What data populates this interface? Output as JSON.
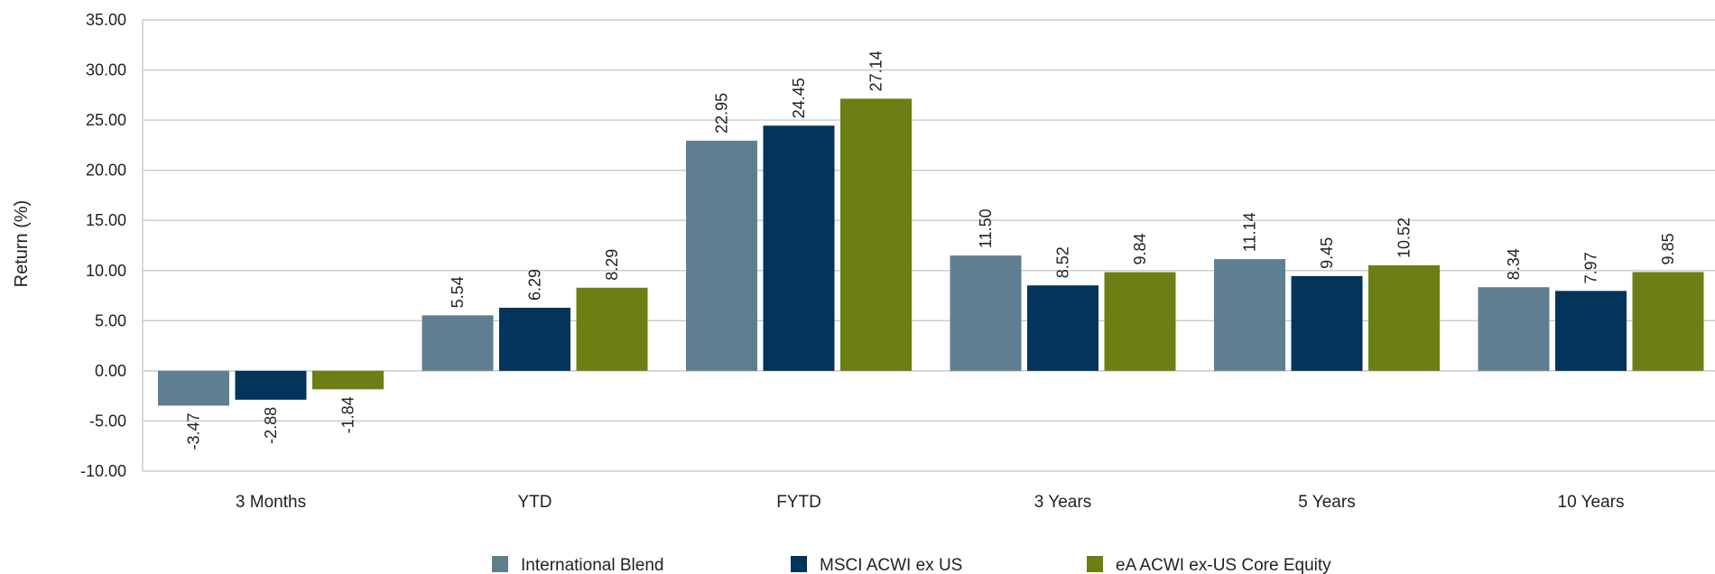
{
  "chart_data": {
    "type": "bar",
    "ylabel": "Return (%)",
    "ylim": [
      -10,
      35
    ],
    "ytick_step": 5,
    "yticks": [
      "-10.00",
      "-5.00",
      "0.00",
      "5.00",
      "10.00",
      "15.00",
      "20.00",
      "25.00",
      "30.00",
      "35.00"
    ],
    "grid": true,
    "legend_position": "bottom-center",
    "categories": [
      "3 Months",
      "YTD",
      "FYTD",
      "3 Years",
      "5 Years",
      "10 Years"
    ],
    "series": [
      {
        "name": "International Blend",
        "color": "#5F7F91",
        "values": [
          -3.47,
          5.54,
          22.95,
          11.5,
          11.14,
          8.34
        ],
        "labels": [
          "-3.47",
          "5.54",
          "22.95",
          "11.50",
          "11.14",
          "8.34"
        ]
      },
      {
        "name": "MSCI ACWI ex US",
        "color": "#03345A",
        "values": [
          -2.88,
          6.29,
          24.45,
          8.52,
          9.45,
          7.97
        ],
        "labels": [
          "-2.88",
          "6.29",
          "24.45",
          "8.52",
          "9.45",
          "7.97"
        ]
      },
      {
        "name": "eA ACWI ex-US Core Equity",
        "color": "#6B7F15",
        "values": [
          -1.84,
          8.29,
          27.14,
          9.84,
          10.52,
          9.85
        ],
        "labels": [
          "-1.84",
          "8.29",
          "27.14",
          "9.84",
          "10.52",
          "9.85"
        ]
      }
    ]
  }
}
